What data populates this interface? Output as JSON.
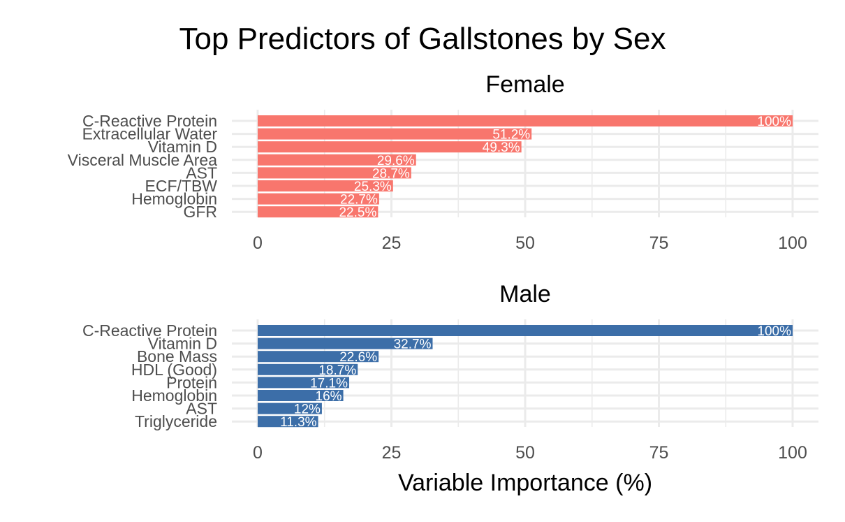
{
  "chart_data": {
    "type": "bar",
    "orientation": "horizontal",
    "title": "Top Predictors of Gallstones by Sex",
    "xlabel": "Variable Importance (%)",
    "ylabel": "",
    "xlim": [
      0,
      100
    ],
    "xticks": [
      0,
      25,
      50,
      75,
      100
    ],
    "grid": true,
    "panels": [
      {
        "name": "Female",
        "color": "#F8766D",
        "categories": [
          "C-Reactive Protein",
          "Extracellular Water",
          "Vitamin D",
          "Visceral Muscle Area",
          "AST",
          "ECF/TBW",
          "Hemoglobin",
          "GFR"
        ],
        "values": [
          100,
          51.2,
          49.3,
          29.6,
          28.7,
          25.3,
          22.7,
          22.5
        ],
        "labels": [
          "100%",
          "51.2%",
          "49.3%",
          "29.6%",
          "28.7%",
          "25.3%",
          "22.7%",
          "22.5%"
        ]
      },
      {
        "name": "Male",
        "color": "#3C6EA8",
        "categories": [
          "C-Reactive Protein",
          "Vitamin D",
          "Bone Mass",
          "HDL (Good)",
          "Protein",
          "Hemoglobin",
          "AST",
          "Triglyceride"
        ],
        "values": [
          100,
          32.7,
          22.6,
          18.7,
          17.1,
          16,
          12,
          11.3
        ],
        "labels": [
          "100%",
          "32.7%",
          "22.6%",
          "18.7%",
          "17.1%",
          "16%",
          "12%",
          "11.3%"
        ]
      }
    ]
  }
}
